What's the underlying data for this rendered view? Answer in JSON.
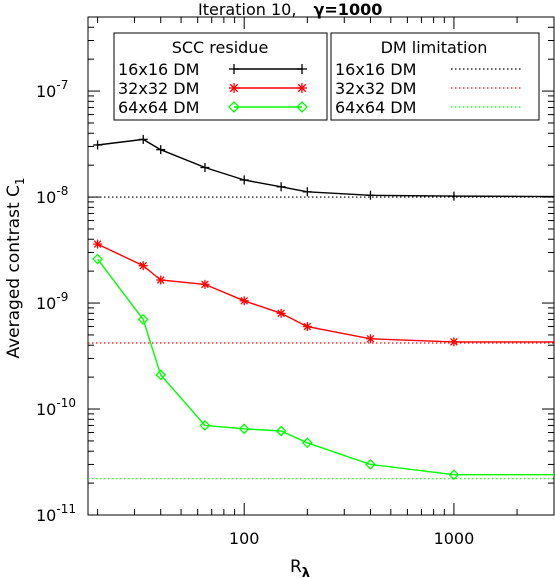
{
  "chart_data": {
    "type": "line",
    "title": "Iteration 10,",
    "title_gamma": "γ=1000",
    "xlabel": "R",
    "xlabel_sub": "λ",
    "ylabel": "Averaged contrast C",
    "ylabel_sub": "1",
    "x_scale": "log",
    "y_scale": "log",
    "xlim": [
      18,
      3000
    ],
    "ylim": [
      1e-11,
      5e-07
    ],
    "x_ticks": [
      {
        "value": 100,
        "label": "100"
      },
      {
        "value": 1000,
        "label": "1000"
      }
    ],
    "y_ticks": [
      {
        "value": 1e-11,
        "base": "10",
        "exp": "-11"
      },
      {
        "value": 1e-10,
        "base": "10",
        "exp": "-10"
      },
      {
        "value": 1e-09,
        "base": "10",
        "exp": "-9"
      },
      {
        "value": 1e-08,
        "base": "10",
        "exp": "-8"
      },
      {
        "value": 1e-07,
        "base": "10",
        "exp": "-7"
      }
    ],
    "series": [
      {
        "name": "16x16 DM",
        "color": "#000000",
        "marker": "plus",
        "x": [
          20,
          33,
          40,
          65,
          100,
          150,
          200,
          400,
          1000,
          3000
        ],
        "y": [
          3.1e-08,
          3.5e-08,
          2.8e-08,
          1.9e-08,
          1.45e-08,
          1.25e-08,
          1.12e-08,
          1.04e-08,
          1.02e-08,
          1.01e-08
        ]
      },
      {
        "name": "32x32 DM",
        "color": "#ff0000",
        "marker": "asterisk",
        "x": [
          20,
          33,
          40,
          65,
          100,
          150,
          200,
          400,
          1000,
          3000
        ],
        "y": [
          3.6e-09,
          2.25e-09,
          1.65e-09,
          1.5e-09,
          1.05e-09,
          8e-10,
          6e-10,
          4.6e-10,
          4.3e-10,
          4.3e-10
        ]
      },
      {
        "name": "64x64 DM",
        "color": "#00ff00",
        "marker": "diamond",
        "x": [
          20,
          33,
          40,
          65,
          100,
          150,
          200,
          400,
          1000,
          3000
        ],
        "y": [
          2.6e-09,
          7e-10,
          2.1e-10,
          7e-11,
          6.5e-11,
          6.2e-11,
          4.8e-11,
          3e-11,
          2.4e-11,
          2.4e-11
        ]
      }
    ],
    "limits": [
      {
        "name": "16x16 DM",
        "color": "#000000",
        "y": 1e-08
      },
      {
        "name": "32x32 DM",
        "color": "#ff0000",
        "y": 4.2e-10
      },
      {
        "name": "64x64 DM",
        "color": "#00ff00",
        "y": 2.2e-11
      }
    ],
    "legend_left_title": "SCC residue",
    "legend_right_title": "DM limitation",
    "legend_placement": "top"
  }
}
